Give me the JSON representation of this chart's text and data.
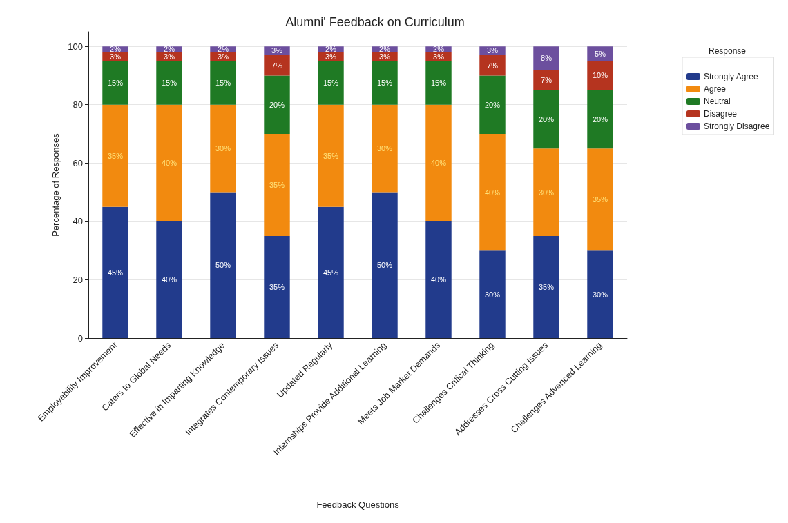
{
  "chart_data": {
    "type": "bar",
    "title": "Alumni' Feedback on Curriculum",
    "xlabel": "Feedback Questions",
    "ylabel": "Percentage of Responses",
    "legend_title": "Response",
    "legend": "top right",
    "grid": "y",
    "stacked": true,
    "categories": [
      "Employability Improvement",
      "Caters to Global Needs",
      "Effective in Imparting Knowledge",
      "Integrates Contemporary Issues",
      "Updated Regularly",
      "Internships Provide Additional Learning",
      "Meets Job Market Demands",
      "Challenges Critical Thinking",
      "Addresses Cross Cutting Issues",
      "Challenges Advanced Learning"
    ],
    "ylim": [
      0,
      105
    ],
    "yticks": [
      0,
      20,
      40,
      60,
      80,
      100
    ],
    "series": [
      {
        "name": "Strongly Agree",
        "color": "#223b8c",
        "values": [
          45,
          40,
          50,
          35,
          45,
          50,
          40,
          30,
          35,
          30
        ],
        "value_labels": [
          "45%",
          "40%",
          "50%",
          "35%",
          "45%",
          "50%",
          "40%",
          "30%",
          "35%",
          "30%"
        ]
      },
      {
        "name": "Agree",
        "color": "#f28a0f",
        "values": [
          35,
          40,
          30,
          35,
          35,
          30,
          40,
          40,
          30,
          35
        ],
        "value_labels": [
          "35%",
          "40%",
          "30%",
          "35%",
          "35%",
          "30%",
          "40%",
          "40%",
          "30%",
          "35%"
        ]
      },
      {
        "name": "Neutral",
        "color": "#1f7a24",
        "values": [
          15,
          15,
          15,
          20,
          15,
          15,
          15,
          20,
          20,
          20
        ],
        "value_labels": [
          "15%",
          "15%",
          "15%",
          "20%",
          "15%",
          "15%",
          "15%",
          "20%",
          "20%",
          "20%"
        ]
      },
      {
        "name": "Disagree",
        "color": "#b5341f",
        "values": [
          3,
          3,
          3,
          7,
          3,
          3,
          3,
          7,
          7,
          10
        ],
        "value_labels": [
          "3%",
          "3%",
          "3%",
          "7%",
          "3%",
          "3%",
          "3%",
          "7%",
          "7%",
          "10%"
        ]
      },
      {
        "name": "Strongly Disagree",
        "color": "#6c4f9e",
        "values": [
          2,
          2,
          2,
          3,
          2,
          2,
          2,
          3,
          8,
          5
        ],
        "value_labels": [
          "2%",
          "2%",
          "2%",
          "3%",
          "2%",
          "2%",
          "2%",
          "3%",
          "8%",
          "5%"
        ]
      }
    ]
  }
}
